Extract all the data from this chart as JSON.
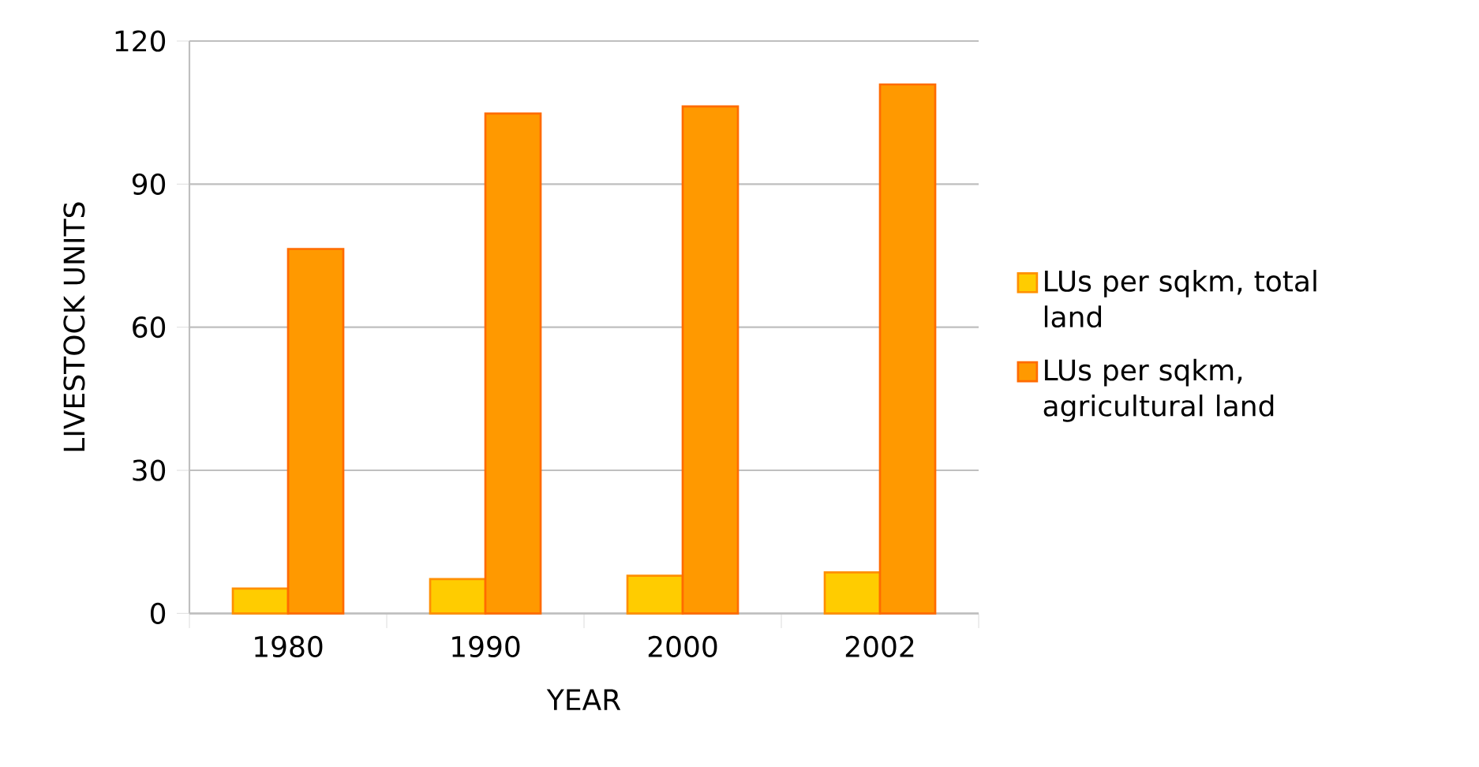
{
  "chart_data": {
    "type": "bar",
    "xlabel": "YEAR",
    "ylabel": "LIVESTOCK UNITS",
    "categories": [
      "1980",
      "1990",
      "2000",
      "2002"
    ],
    "series": [
      {
        "name": "LUs per sqkm, total land",
        "color": "#ffcc00",
        "values": [
          5.2,
          7.2,
          7.9,
          8.6
        ]
      },
      {
        "name": "LUs per sqkm, agricultural land",
        "color": "#ff9900",
        "values": [
          76.4,
          104.8,
          106.3,
          110.9
        ]
      }
    ],
    "ylim": [
      0,
      120
    ],
    "yticks": [
      0,
      30,
      60,
      90,
      120
    ],
    "grid": "y",
    "legend": "right"
  }
}
